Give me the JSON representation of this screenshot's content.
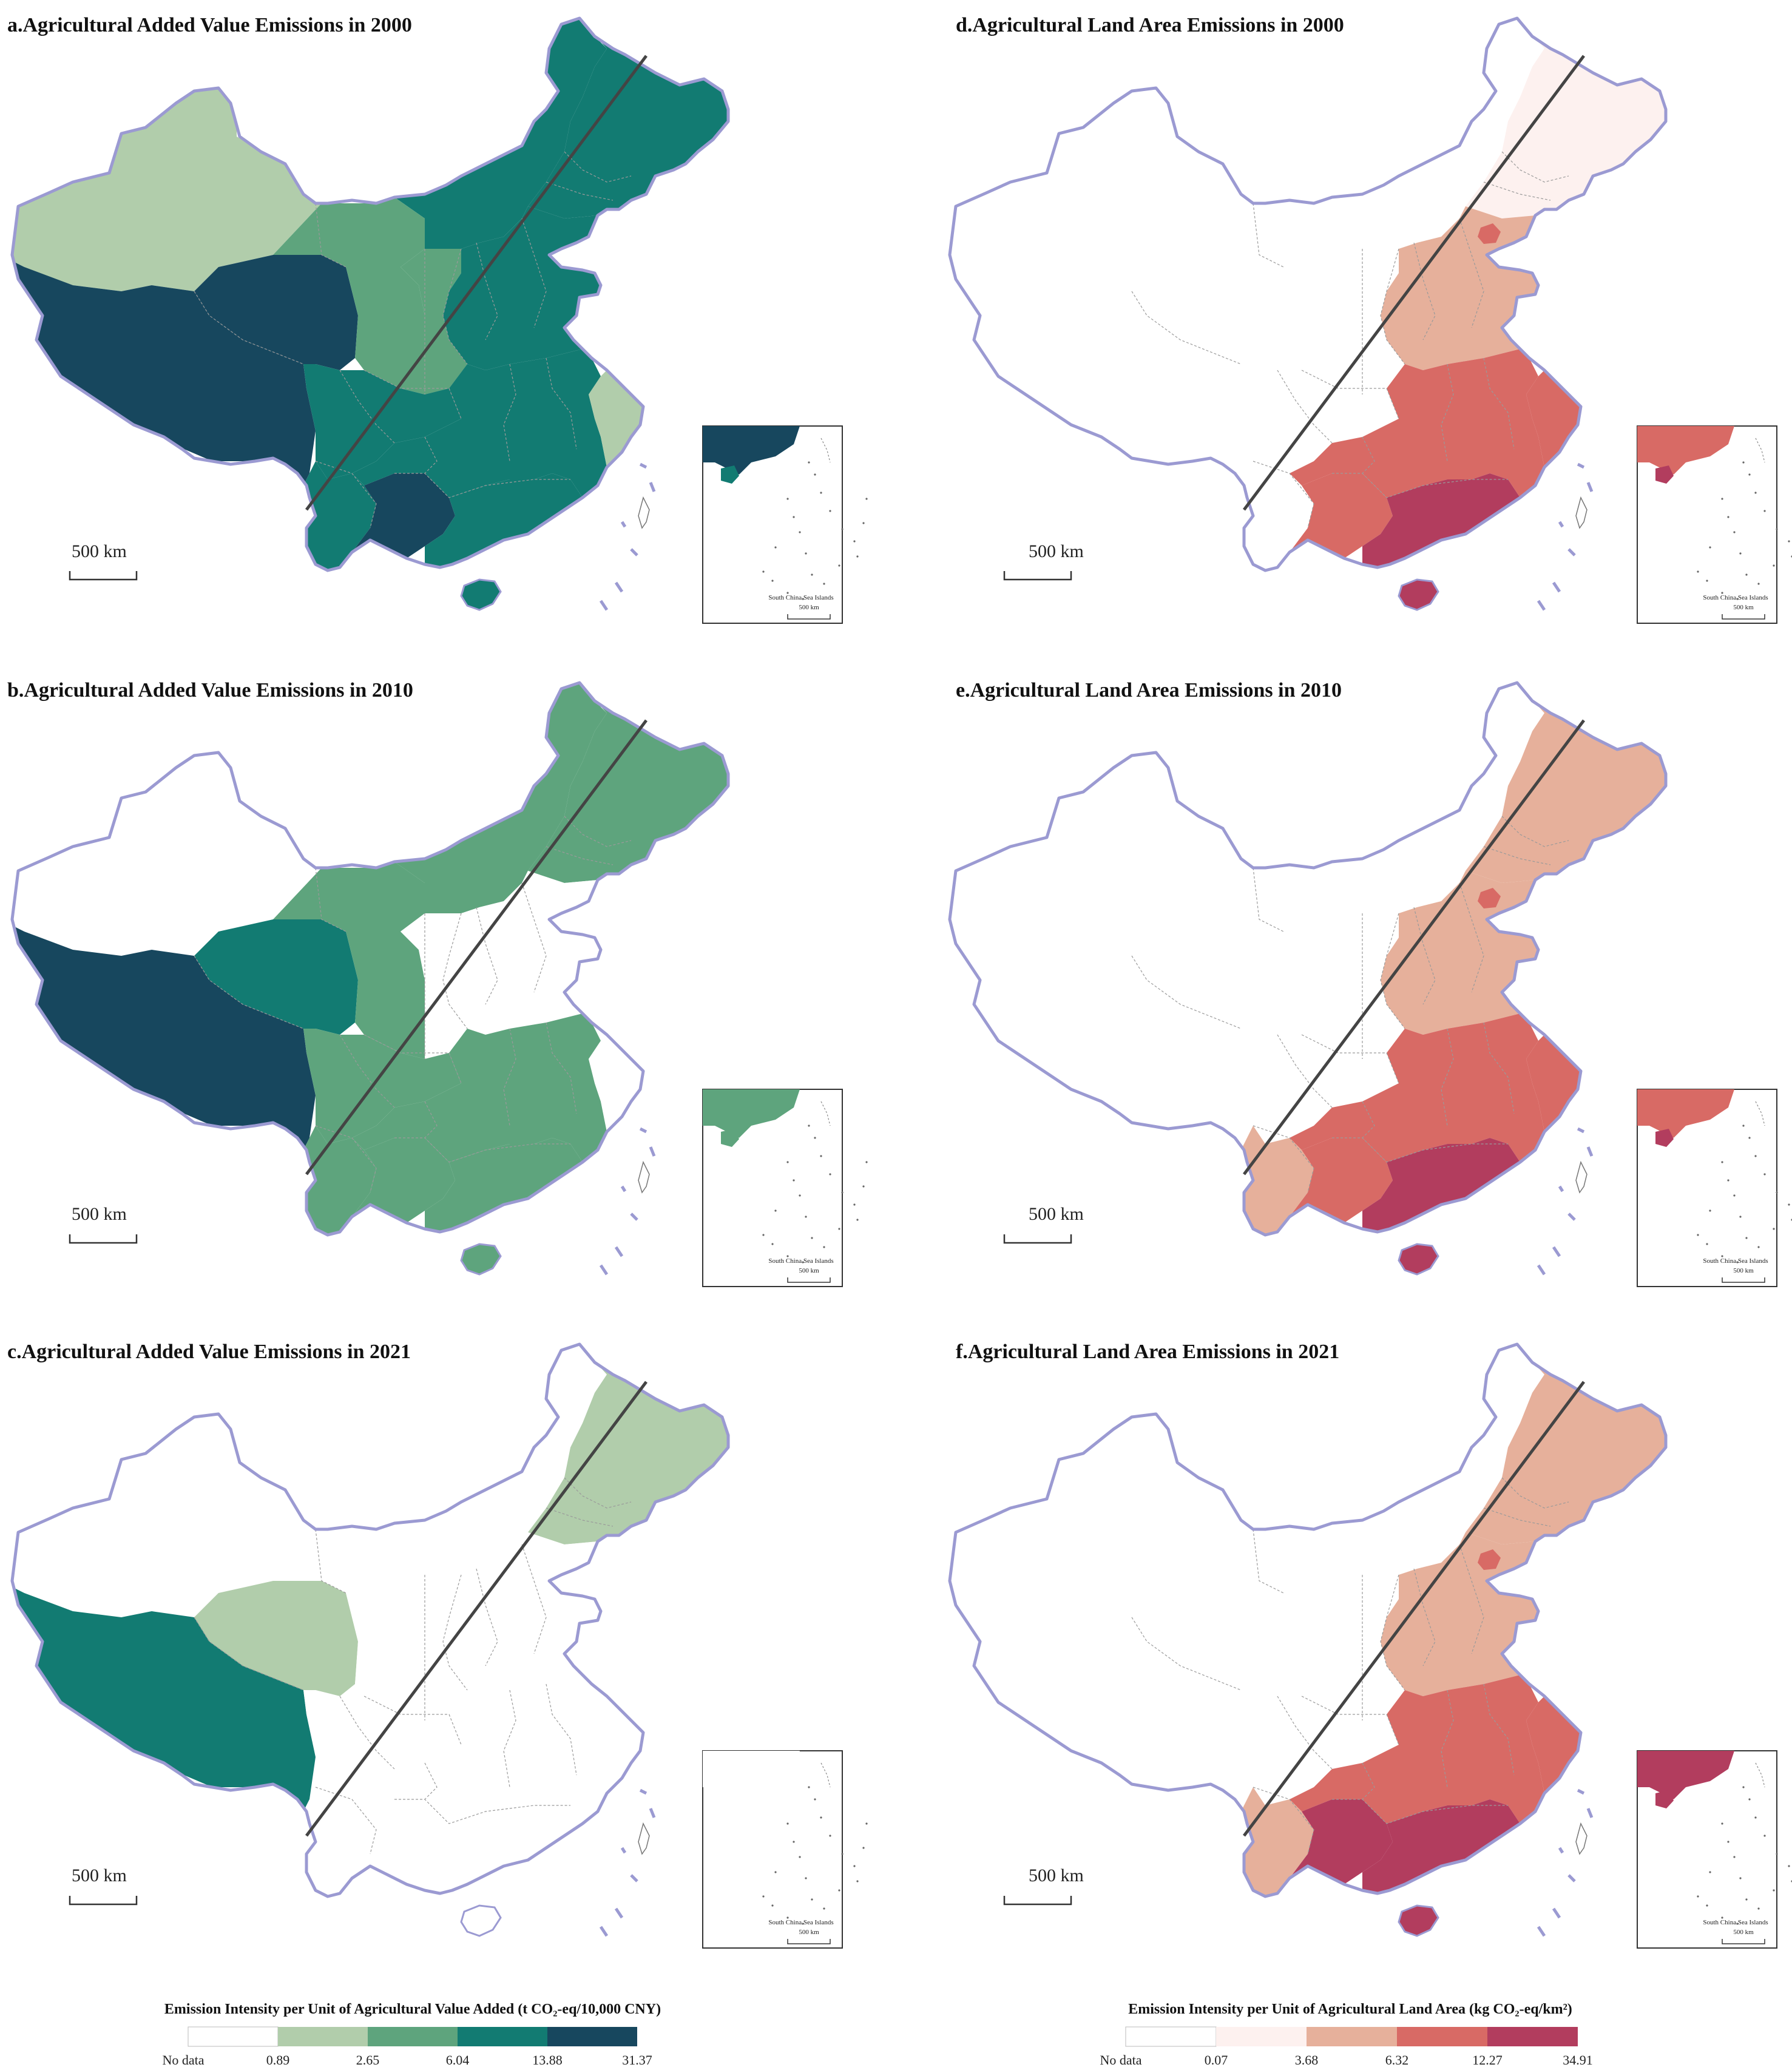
{
  "map_data": {
    "type": "choropleth-map",
    "region": "China",
    "panels": [
      {
        "id": "a",
        "title": "a.Agricultural Added Value Emissions in 2000",
        "indicator": "value_added",
        "scale_label": "500 km",
        "inset_label": "South China Sea Islands",
        "inset_scale_label": "500 km",
        "class_by_zone": {
          "xinjiang": 2,
          "tibet": 5,
          "qinghai": 5,
          "gansu": 3,
          "sichuan": 4,
          "yunnan": 4,
          "guangxi": 5,
          "southeast": 4,
          "zhejiang": 2,
          "north_central": 4,
          "shaanxi": 3,
          "inner_mongolia": 4,
          "northeast": 4,
          "hainan": 4,
          "south_china_sea": 5
        }
      },
      {
        "id": "b",
        "title": "b.Agricultural Added Value Emissions in 2010",
        "indicator": "value_added",
        "scale_label": "500 km",
        "inset_label": "South China Sea Islands",
        "inset_scale_label": "500 km",
        "class_by_zone": {
          "xinjiang": 1,
          "tibet": 5,
          "qinghai": 4,
          "gansu": 3,
          "sichuan": 3,
          "yunnan": 3,
          "guangxi": 3,
          "southeast": 3,
          "zhejiang": 1,
          "north_central": 1,
          "shaanxi": 1,
          "inner_mongolia": 3,
          "northeast": 3,
          "hainan": 3,
          "south_china_sea": 3
        }
      },
      {
        "id": "c",
        "title": "c.Agricultural Added Value Emissions in 2021",
        "indicator": "value_added",
        "scale_label": "500 km",
        "inset_label": "South China Sea Islands",
        "inset_scale_label": "500 km",
        "class_by_zone": {
          "xinjiang": 1,
          "tibet": 4,
          "qinghai": 2,
          "gansu": 1,
          "sichuan": 1,
          "yunnan": 1,
          "guangxi": 1,
          "southeast": 1,
          "zhejiang": 1,
          "north_central": 1,
          "shaanxi": 1,
          "inner_mongolia": 1,
          "northeast": 2,
          "hainan": 1,
          "south_china_sea": 1
        }
      },
      {
        "id": "d",
        "title": "d.Agricultural Land Area Emissions in 2000",
        "indicator": "land_area",
        "scale_label": "500 km",
        "inset_label": "South China Sea Islands",
        "inset_scale_label": "500 km",
        "class_by_zone": {
          "xinjiang": 1,
          "tibet": 1,
          "qinghai": 1,
          "gansu": 1,
          "sichuan": 1,
          "yunnan": 1,
          "guangxi": 4,
          "southeast": 4,
          "guangdong": 5,
          "zhejiang": 4,
          "north_central": 3,
          "shaanxi": 1,
          "inner_mongolia": 1,
          "northeast": 2,
          "beijing": 4,
          "hainan": 5,
          "south_china_sea": 4
        }
      },
      {
        "id": "e",
        "title": "e.Agricultural Land Area Emissions in 2010",
        "indicator": "land_area",
        "scale_label": "500 km",
        "inset_label": "South China Sea Islands",
        "inset_scale_label": "500 km",
        "class_by_zone": {
          "xinjiang": 1,
          "tibet": 1,
          "qinghai": 1,
          "gansu": 1,
          "sichuan": 1,
          "yunnan": 3,
          "guangxi": 4,
          "southeast": 4,
          "guangdong": 5,
          "zhejiang": 4,
          "north_central": 3,
          "shaanxi": 1,
          "inner_mongolia": 1,
          "northeast": 3,
          "beijing": 4,
          "hainan": 5,
          "south_china_sea": 4
        }
      },
      {
        "id": "f",
        "title": "f.Agricultural Land Area Emissions in 2021",
        "indicator": "land_area",
        "scale_label": "500 km",
        "inset_label": "South China Sea Islands",
        "inset_scale_label": "500 km",
        "class_by_zone": {
          "xinjiang": 1,
          "tibet": 1,
          "qinghai": 1,
          "gansu": 1,
          "sichuan": 1,
          "yunnan": 3,
          "guangxi": 5,
          "southeast": 4,
          "guangdong": 5,
          "zhejiang": 4,
          "north_central": 3,
          "shaanxi": 1,
          "inner_mongolia": 1,
          "northeast": 3,
          "beijing": 4,
          "hainan": 5,
          "south_china_sea": 5
        }
      }
    ],
    "legends": {
      "value_added": {
        "title": "Emission Intensity per Unit of Agricultural Value Added (t CO₂-eq/10,000 CNY)",
        "no_data_label": "No data",
        "breaks": [
          "0.89",
          "2.65",
          "6.04",
          "13.88",
          "31.37"
        ],
        "colors": [
          "#ffffff",
          "#b1cdab",
          "#5ea47d",
          "#127b72",
          "#17475e"
        ]
      },
      "land_area": {
        "title": "Emission Intensity per Unit of Agricultural Land Area (kg CO₂-eq/km²)",
        "no_data_label": "No data",
        "breaks": [
          "0.07",
          "3.68",
          "6.32",
          "12.27",
          "34.91"
        ],
        "colors": [
          "#ffffff",
          "#fdf1ef",
          "#e6b09b",
          "#d86a65",
          "#b23d5e"
        ]
      }
    },
    "colors": {
      "border": "#9b9ad2",
      "divider_line": "#444444",
      "internal_boundary": "#9a9a9a"
    }
  }
}
